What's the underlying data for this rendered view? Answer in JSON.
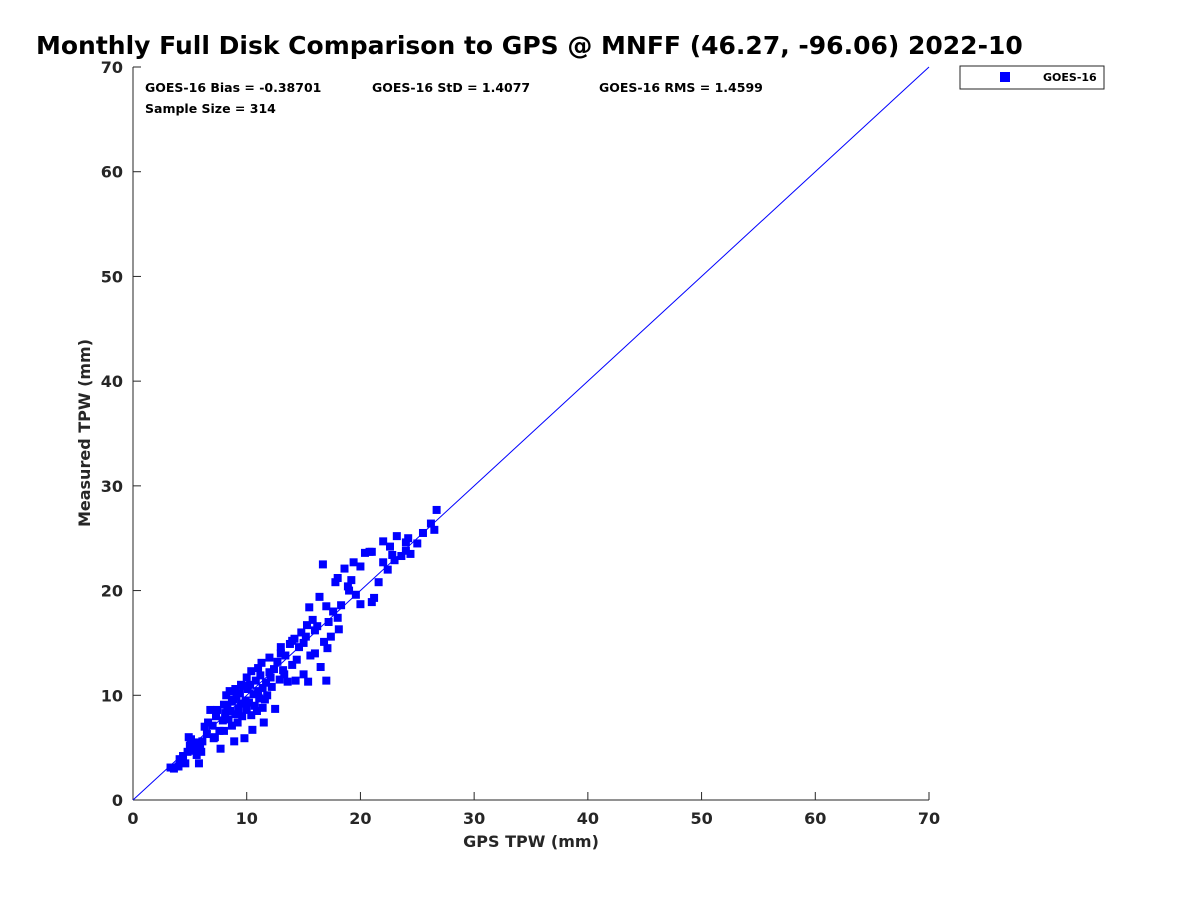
{
  "chart_data": {
    "type": "scatter",
    "title": "Monthly Full Disk Comparison to GPS @ MNFF (46.27, -96.06) 2022-10",
    "xlabel": "GPS TPW (mm)",
    "ylabel": "Measured TPW (mm)",
    "xlim": [
      0,
      70
    ],
    "ylim": [
      0,
      70
    ],
    "xticks": [
      "0",
      "10",
      "20",
      "30",
      "40",
      "50",
      "60",
      "70"
    ],
    "yticks": [
      "0",
      "10",
      "20",
      "30",
      "40",
      "50",
      "60",
      "70"
    ],
    "grid": false,
    "legend_position": "outside-top-right",
    "reference_line": {
      "x": [
        0,
        70
      ],
      "y": [
        0,
        70
      ],
      "color": "#0000ff"
    },
    "annotations": {
      "bias": "GOES-16 Bias = -0.38701",
      "std": "GOES-16 StD = 1.4077",
      "rms": "GOES-16 RMS = 1.4599",
      "sample_size": "Sample Size = 314"
    },
    "series": [
      {
        "name": "GOES-16",
        "color": "#0000ff",
        "marker": "square",
        "points": [
          [
            3.3,
            3.1
          ],
          [
            3.6,
            3.0
          ],
          [
            4.0,
            3.2
          ],
          [
            4.2,
            3.6
          ],
          [
            4.4,
            4.2
          ],
          [
            4.6,
            3.5
          ],
          [
            4.8,
            4.6
          ],
          [
            5.0,
            5.2
          ],
          [
            5.1,
            5.8
          ],
          [
            5.3,
            4.8
          ],
          [
            5.5,
            5.5
          ],
          [
            5.6,
            4.3
          ],
          [
            5.8,
            3.5
          ],
          [
            5.9,
            4.9
          ],
          [
            6.1,
            5.6
          ],
          [
            6.3,
            7.0
          ],
          [
            6.6,
            7.4
          ],
          [
            6.8,
            8.6
          ],
          [
            7.0,
            7.1
          ],
          [
            7.2,
            6.0
          ],
          [
            7.4,
            8.6
          ],
          [
            7.6,
            6.6
          ],
          [
            7.7,
            4.9
          ],
          [
            7.9,
            7.6
          ],
          [
            8.0,
            6.6
          ],
          [
            8.1,
            8.3
          ],
          [
            8.2,
            10.0
          ],
          [
            8.3,
            9.0
          ],
          [
            8.4,
            7.7
          ],
          [
            8.5,
            10.4
          ],
          [
            8.6,
            8.5
          ],
          [
            8.7,
            7.1
          ],
          [
            8.8,
            9.6
          ],
          [
            8.9,
            5.6
          ],
          [
            9.0,
            8.2
          ],
          [
            9.1,
            9.9
          ],
          [
            9.2,
            7.4
          ],
          [
            9.3,
            8.7
          ],
          [
            9.4,
            10.2
          ],
          [
            9.5,
            9.2
          ],
          [
            9.6,
            8.0
          ],
          [
            9.7,
            10.9
          ],
          [
            9.8,
            5.9
          ],
          [
            9.9,
            9.5
          ],
          [
            10.0,
            8.6
          ],
          [
            10.1,
            10.6
          ],
          [
            10.2,
            9.3
          ],
          [
            10.3,
            11.0
          ],
          [
            10.4,
            8.1
          ],
          [
            10.5,
            6.7
          ],
          [
            10.6,
            10.1
          ],
          [
            10.7,
            9.0
          ],
          [
            10.8,
            11.4
          ],
          [
            10.9,
            8.5
          ],
          [
            11.0,
            10.4
          ],
          [
            11.1,
            9.7
          ],
          [
            11.2,
            11.9
          ],
          [
            11.3,
            13.1
          ],
          [
            11.4,
            10.7
          ],
          [
            11.5,
            7.4
          ],
          [
            11.6,
            9.6
          ],
          [
            11.7,
            11.2
          ],
          [
            11.8,
            10.0
          ],
          [
            12.0,
            12.2
          ],
          [
            12.2,
            10.8
          ],
          [
            12.4,
            12.5
          ],
          [
            12.5,
            8.7
          ],
          [
            12.7,
            13.2
          ],
          [
            12.9,
            11.5
          ],
          [
            13.0,
            14.6
          ],
          [
            13.2,
            12.4
          ],
          [
            13.4,
            13.8
          ],
          [
            13.6,
            11.3
          ],
          [
            13.8,
            14.9
          ],
          [
            14.0,
            12.9
          ],
          [
            14.2,
            15.4
          ],
          [
            14.4,
            13.4
          ],
          [
            14.6,
            14.6
          ],
          [
            14.8,
            16.0
          ],
          [
            15.0,
            12.0
          ],
          [
            15.2,
            15.6
          ],
          [
            15.4,
            11.3
          ],
          [
            15.5,
            18.4
          ],
          [
            15.6,
            13.8
          ],
          [
            15.8,
            17.2
          ],
          [
            16.0,
            14.0
          ],
          [
            16.2,
            16.6
          ],
          [
            16.5,
            12.7
          ],
          [
            16.7,
            22.5
          ],
          [
            16.8,
            15.1
          ],
          [
            17.0,
            11.4
          ],
          [
            17.2,
            17.0
          ],
          [
            17.4,
            15.6
          ],
          [
            17.6,
            18.0
          ],
          [
            17.8,
            20.8
          ],
          [
            18.0,
            17.4
          ],
          [
            18.3,
            18.6
          ],
          [
            18.6,
            22.1
          ],
          [
            18.9,
            20.4
          ],
          [
            19.2,
            21.0
          ],
          [
            19.6,
            19.6
          ],
          [
            20.0,
            18.7
          ],
          [
            20.4,
            23.6
          ],
          [
            20.8,
            23.7
          ],
          [
            21.2,
            19.3
          ],
          [
            21.6,
            20.8
          ],
          [
            22.0,
            24.7
          ],
          [
            22.4,
            22.0
          ],
          [
            22.8,
            23.4
          ],
          [
            23.2,
            25.2
          ],
          [
            23.6,
            23.3
          ],
          [
            24.0,
            24.6
          ],
          [
            24.4,
            23.5
          ],
          [
            25.0,
            24.5
          ],
          [
            25.5,
            25.5
          ],
          [
            26.2,
            26.4
          ],
          [
            26.5,
            25.8
          ],
          [
            26.7,
            27.7
          ],
          [
            4.9,
            6.0
          ],
          [
            5.4,
            5.0
          ],
          [
            6.0,
            4.6
          ],
          [
            7.1,
            5.9
          ],
          [
            8.7,
            9.4
          ],
          [
            9.5,
            11.0
          ],
          [
            10.4,
            12.3
          ],
          [
            11.4,
            8.8
          ],
          [
            12.1,
            11.7
          ],
          [
            13.3,
            12.0
          ],
          [
            14.3,
            11.4
          ],
          [
            15.3,
            16.7
          ],
          [
            16.4,
            19.4
          ],
          [
            17.1,
            14.5
          ],
          [
            18.1,
            16.3
          ],
          [
            19.4,
            22.7
          ],
          [
            21.0,
            18.9
          ],
          [
            22.6,
            24.2
          ],
          [
            24.2,
            25.0
          ],
          [
            4.1,
            3.9
          ],
          [
            5.2,
            4.7
          ],
          [
            6.5,
            6.3
          ],
          [
            7.3,
            8.0
          ],
          [
            8.0,
            9.1
          ],
          [
            9.0,
            10.6
          ],
          [
            10.0,
            11.7
          ],
          [
            11.0,
            12.6
          ],
          [
            12.0,
            13.6
          ],
          [
            13.0,
            14.0
          ],
          [
            14.0,
            15.2
          ],
          [
            15.0,
            15.0
          ],
          [
            16.0,
            16.2
          ],
          [
            17.0,
            18.5
          ],
          [
            18.0,
            21.2
          ],
          [
            19.0,
            20.0
          ],
          [
            20.0,
            22.3
          ],
          [
            21.0,
            23.7
          ],
          [
            22.0,
            22.7
          ],
          [
            23.0,
            22.9
          ],
          [
            24.0,
            23.8
          ]
        ]
      }
    ]
  }
}
